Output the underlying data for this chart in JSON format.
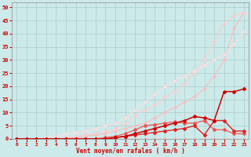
{
  "xlabel": "Vent moyen/en rafales ( km/h )",
  "xlim": [
    -0.5,
    23.5
  ],
  "ylim": [
    0,
    52
  ],
  "xticks": [
    0,
    1,
    2,
    3,
    4,
    5,
    6,
    7,
    8,
    9,
    10,
    11,
    12,
    13,
    14,
    15,
    16,
    17,
    18,
    19,
    20,
    21,
    22,
    23
  ],
  "yticks": [
    0,
    5,
    10,
    15,
    20,
    25,
    30,
    35,
    40,
    45,
    50
  ],
  "bg_color": "#cceaea",
  "grid_color": "#aacccc",
  "lines": [
    {
      "x": [
        0,
        1,
        2,
        3,
        4,
        5,
        6,
        7,
        8,
        9,
        10,
        11,
        12,
        13,
        14,
        15,
        16,
        17,
        18,
        19,
        20,
        21,
        22,
        23
      ],
      "y": [
        0,
        0,
        0,
        0,
        0,
        0,
        0,
        0,
        0,
        0,
        0,
        0,
        0,
        0,
        0,
        0,
        0,
        0,
        0,
        0,
        0,
        0,
        0,
        0
      ],
      "color": "#ffaaaa",
      "lw": 0.8,
      "marker": "D",
      "ms": 1.5
    },
    {
      "x": [
        0,
        1,
        2,
        3,
        4,
        5,
        6,
        7,
        8,
        9,
        10,
        11,
        12,
        13,
        14,
        15,
        16,
        17,
        18,
        19,
        20,
        21,
        22,
        23
      ],
      "y": [
        0,
        0,
        0,
        0,
        0,
        0.5,
        0.5,
        1,
        1.5,
        2,
        3,
        4,
        5,
        6,
        8,
        10,
        12,
        14,
        16,
        19,
        24,
        30,
        42,
        48
      ],
      "color": "#ffbbbb",
      "lw": 0.8,
      "marker": "D",
      "ms": 1.5
    },
    {
      "x": [
        0,
        1,
        2,
        3,
        4,
        5,
        6,
        7,
        8,
        9,
        10,
        11,
        12,
        13,
        14,
        15,
        16,
        17,
        18,
        19,
        20,
        21,
        22,
        23
      ],
      "y": [
        0,
        0,
        0,
        0,
        0,
        0.5,
        1,
        1.5,
        2,
        3,
        4,
        6,
        9,
        11,
        13,
        16,
        18,
        21,
        25,
        30,
        37,
        44,
        47,
        48
      ],
      "color": "#ffcccc",
      "lw": 0.8,
      "marker": "D",
      "ms": 1.5
    },
    {
      "x": [
        0,
        1,
        2,
        3,
        4,
        5,
        6,
        7,
        8,
        9,
        10,
        11,
        12,
        13,
        14,
        15,
        16,
        17,
        18,
        19,
        20,
        21,
        22,
        23
      ],
      "y": [
        0,
        0,
        0,
        0.5,
        1,
        2,
        2.5,
        3,
        4,
        5,
        6,
        8,
        11,
        14,
        17,
        20,
        22,
        24,
        26,
        28,
        30,
        32,
        36,
        41
      ],
      "color": "#ffdddd",
      "lw": 0.8,
      "marker": "D",
      "ms": 1.5
    },
    {
      "x": [
        0,
        1,
        2,
        3,
        4,
        5,
        6,
        7,
        8,
        9,
        10,
        11,
        12,
        13,
        14,
        15,
        16,
        17,
        18,
        19,
        20,
        21,
        22,
        23
      ],
      "y": [
        0,
        0,
        0,
        0,
        0,
        0,
        0,
        0,
        0,
        0.5,
        1,
        2,
        3.5,
        5,
        5.5,
        6,
        6.5,
        6,
        6,
        7,
        3.5,
        3.5,
        2,
        2
      ],
      "color": "#ee5555",
      "lw": 0.9,
      "marker": "D",
      "ms": 2.0
    },
    {
      "x": [
        0,
        1,
        2,
        3,
        4,
        5,
        6,
        7,
        8,
        9,
        10,
        11,
        12,
        13,
        14,
        15,
        16,
        17,
        18,
        19,
        20,
        21,
        22,
        23
      ],
      "y": [
        0,
        0,
        0,
        0,
        0,
        0,
        0,
        0,
        0,
        0,
        0.5,
        1,
        1.5,
        2,
        2.5,
        3,
        3.5,
        4,
        5,
        1.5,
        7,
        7,
        3,
        3
      ],
      "color": "#dd2222",
      "lw": 1.0,
      "marker": "D",
      "ms": 2.0
    },
    {
      "x": [
        0,
        1,
        2,
        3,
        4,
        5,
        6,
        7,
        8,
        9,
        10,
        11,
        12,
        13,
        14,
        15,
        16,
        17,
        18,
        19,
        20,
        21,
        22,
        23
      ],
      "y": [
        0,
        0,
        0,
        0,
        0,
        0,
        0,
        0,
        0,
        0,
        0.5,
        1,
        2,
        3,
        4,
        5,
        6,
        7,
        8.5,
        8,
        7,
        18,
        18,
        19
      ],
      "color": "#cc0000",
      "lw": 1.1,
      "marker": "D",
      "ms": 2.0
    }
  ]
}
